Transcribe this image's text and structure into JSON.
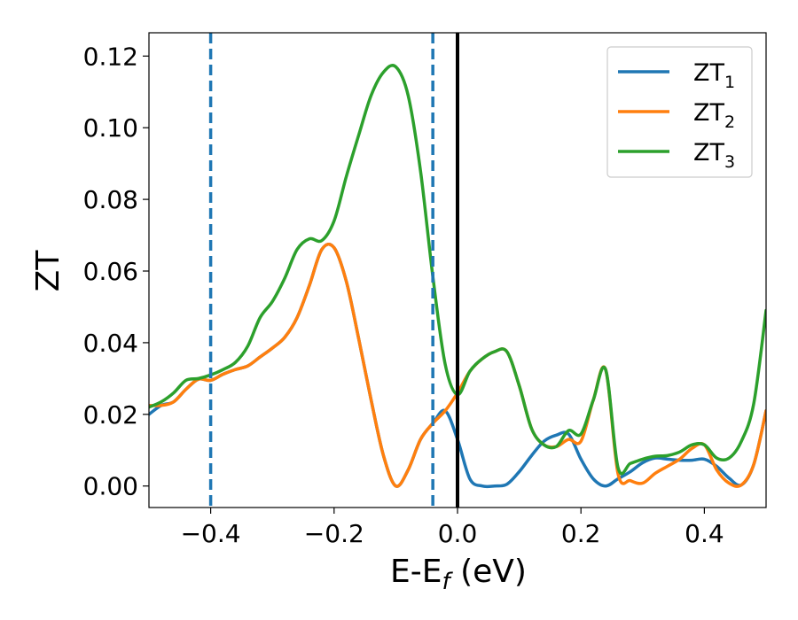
{
  "chart_data": {
    "type": "line",
    "title": "",
    "xlabel": {
      "main": "E-E",
      "sub": "f",
      "suffix": " (eV)"
    },
    "ylabel": "ZT",
    "xlim": [
      -0.5,
      0.5
    ],
    "ylim": [
      -0.006,
      0.1265
    ],
    "grid": false,
    "legend_position": "top-right",
    "xticks": [
      {
        "value": -0.4,
        "label": "−0.4"
      },
      {
        "value": -0.2,
        "label": "−0.2"
      },
      {
        "value": 0.0,
        "label": "0.0"
      },
      {
        "value": 0.2,
        "label": "0.2"
      },
      {
        "value": 0.4,
        "label": "0.4"
      }
    ],
    "yticks": [
      {
        "value": 0.0,
        "label": "0.00"
      },
      {
        "value": 0.02,
        "label": "0.02"
      },
      {
        "value": 0.04,
        "label": "0.04"
      },
      {
        "value": 0.06,
        "label": "0.06"
      },
      {
        "value": 0.08,
        "label": "0.08"
      },
      {
        "value": 0.1,
        "label": "0.10"
      },
      {
        "value": 0.12,
        "label": "0.12"
      }
    ],
    "vlines": [
      {
        "x": -0.4,
        "style": "dashed",
        "color": "#1f77b4"
      },
      {
        "x": -0.04,
        "style": "dashed",
        "color": "#1f77b4"
      },
      {
        "x": 0.0,
        "style": "solid",
        "color": "#000000"
      }
    ],
    "series": [
      {
        "name": "ZT",
        "sub": "1",
        "color": "#1f77b4",
        "x": [
          -0.5,
          -0.48,
          -0.46,
          -0.44,
          -0.42,
          -0.4,
          -0.38,
          -0.36,
          -0.34,
          -0.32,
          -0.3,
          -0.28,
          -0.26,
          -0.24,
          -0.22,
          -0.2,
          -0.18,
          -0.16,
          -0.14,
          -0.12,
          -0.1,
          -0.08,
          -0.06,
          -0.04,
          -0.02,
          0.0,
          0.02,
          0.04,
          0.06,
          0.08,
          0.1,
          0.12,
          0.14,
          0.16,
          0.18,
          0.2,
          0.22,
          0.24,
          0.26,
          0.28,
          0.3,
          0.32,
          0.34,
          0.36,
          0.38,
          0.4,
          0.42,
          0.44,
          0.46,
          0.48,
          0.5
        ],
        "y": [
          0.02,
          0.0225,
          0.0235,
          0.027,
          0.0298,
          0.0295,
          0.0312,
          0.0325,
          0.0335,
          0.036,
          0.0385,
          0.0415,
          0.047,
          0.056,
          0.066,
          0.0665,
          0.057,
          0.041,
          0.024,
          0.0085,
          0.0,
          0.0045,
          0.013,
          0.0175,
          0.021,
          0.013,
          0.002,
          0.0,
          0.0,
          0.0005,
          0.004,
          0.0085,
          0.0125,
          0.0142,
          0.0145,
          0.0075,
          0.002,
          0.0,
          0.002,
          0.004,
          0.0065,
          0.0078,
          0.0075,
          0.0072,
          0.0072,
          0.0075,
          0.0055,
          0.0022,
          0.0003,
          0.006,
          0.021
        ]
      },
      {
        "name": "ZT",
        "sub": "2",
        "color": "#ff7f0e",
        "x": [
          -0.5,
          -0.48,
          -0.46,
          -0.44,
          -0.42,
          -0.4,
          -0.38,
          -0.36,
          -0.34,
          -0.32,
          -0.3,
          -0.28,
          -0.26,
          -0.24,
          -0.22,
          -0.2,
          -0.18,
          -0.16,
          -0.14,
          -0.12,
          -0.1,
          -0.08,
          -0.06,
          -0.04,
          -0.02,
          0.0,
          0.02,
          0.04,
          0.06,
          0.08,
          0.1,
          0.12,
          0.14,
          0.16,
          0.18,
          0.2,
          0.22,
          0.24,
          0.26,
          0.28,
          0.3,
          0.32,
          0.34,
          0.36,
          0.38,
          0.4,
          0.42,
          0.44,
          0.46,
          0.48,
          0.5
        ],
        "y": [
          0.0225,
          0.0225,
          0.0235,
          0.027,
          0.0298,
          0.0295,
          0.0312,
          0.0325,
          0.0335,
          0.036,
          0.0385,
          0.0415,
          0.047,
          0.056,
          0.066,
          0.0665,
          0.057,
          0.041,
          0.024,
          0.0085,
          0.0,
          0.0045,
          0.013,
          0.0175,
          0.021,
          0.026,
          0.032,
          0.0355,
          0.0375,
          0.0375,
          0.028,
          0.016,
          0.0115,
          0.011,
          0.013,
          0.0125,
          0.024,
          0.0325,
          0.0035,
          0.0015,
          0.0008,
          0.0035,
          0.0055,
          0.0075,
          0.0105,
          0.0115,
          0.0045,
          0.0008,
          0.0003,
          0.006,
          0.021
        ]
      },
      {
        "name": "ZT",
        "sub": "3",
        "color": "#2ca02c",
        "x": [
          -0.5,
          -0.48,
          -0.46,
          -0.44,
          -0.42,
          -0.4,
          -0.38,
          -0.36,
          -0.34,
          -0.32,
          -0.3,
          -0.28,
          -0.26,
          -0.24,
          -0.22,
          -0.2,
          -0.18,
          -0.16,
          -0.14,
          -0.12,
          -0.1,
          -0.08,
          -0.06,
          -0.04,
          -0.02,
          0.0,
          0.02,
          0.04,
          0.06,
          0.08,
          0.1,
          0.12,
          0.14,
          0.16,
          0.18,
          0.2,
          0.22,
          0.24,
          0.26,
          0.28,
          0.3,
          0.32,
          0.34,
          0.36,
          0.38,
          0.4,
          0.42,
          0.44,
          0.46,
          0.48,
          0.5
        ],
        "y": [
          0.022,
          0.0235,
          0.026,
          0.0295,
          0.03,
          0.031,
          0.0325,
          0.0345,
          0.039,
          0.047,
          0.0515,
          0.058,
          0.066,
          0.069,
          0.0685,
          0.074,
          0.0865,
          0.098,
          0.109,
          0.1155,
          0.117,
          0.109,
          0.088,
          0.0585,
          0.034,
          0.0255,
          0.032,
          0.0355,
          0.0375,
          0.0375,
          0.028,
          0.016,
          0.0115,
          0.011,
          0.0155,
          0.0145,
          0.024,
          0.0325,
          0.0052,
          0.0063,
          0.0075,
          0.0083,
          0.0085,
          0.0095,
          0.0115,
          0.0115,
          0.0078,
          0.0078,
          0.0125,
          0.023,
          0.049
        ]
      }
    ]
  }
}
